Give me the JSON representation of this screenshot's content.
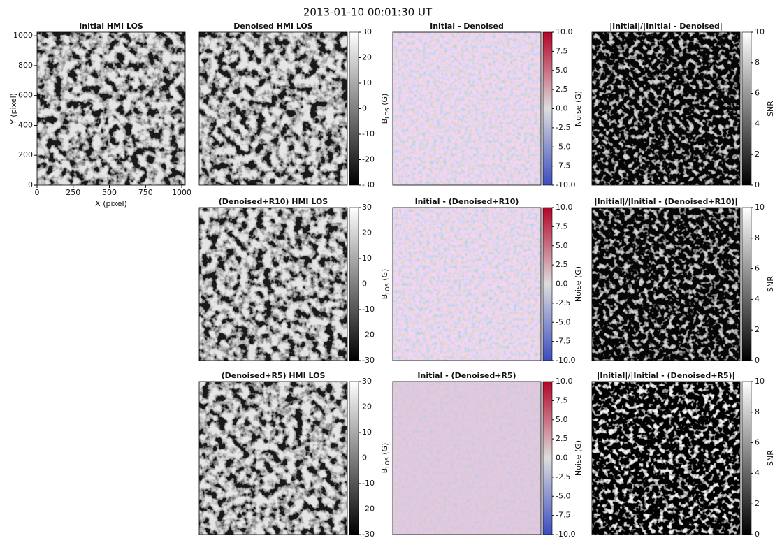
{
  "figure_title": "2013-01-10  00:01:30  UT",
  "chart_data": [
    {
      "type": "image",
      "title": "Initial HMI LOS",
      "colormap": "gray",
      "xlabel": "X (pixel)",
      "ylabel": "Y (pixel)",
      "xlim": [
        0,
        1024
      ],
      "ylim": [
        0,
        1024
      ],
      "xticks": [
        0,
        250,
        500,
        750,
        1000
      ],
      "yticks": [
        0,
        200,
        400,
        600,
        800,
        1000
      ]
    },
    {
      "type": "image",
      "title": "Denoised HMI LOS",
      "colormap": "gray",
      "colorbar": {
        "clim": [
          -30,
          30
        ],
        "ticks": [
          -30,
          -20,
          -10,
          0,
          10,
          20,
          30
        ],
        "label": {
          "main": "B",
          "sub": "LOS",
          "unit": " (G)"
        }
      }
    },
    {
      "type": "image",
      "title": "Initial - Denoised",
      "colormap": "bwr",
      "colorbar": {
        "clim": [
          -10,
          10
        ],
        "ticks": [
          {
            "value": -10,
            "label": "-10.0"
          },
          {
            "value": -7.5,
            "label": "-7.5"
          },
          {
            "value": -5,
            "label": "-5.0"
          },
          {
            "value": -2.5,
            "label": "-2.5"
          },
          {
            "value": 0,
            "label": "0.0"
          },
          {
            "value": 2.5,
            "label": "2.5"
          },
          {
            "value": 5,
            "label": "5.0"
          },
          {
            "value": 7.5,
            "label": "7.5"
          },
          {
            "value": 10,
            "label": "10.0"
          }
        ],
        "label": {
          "main": "Noise (G)"
        }
      }
    },
    {
      "type": "image",
      "title": "|Initial|/|Initial - Denoised|",
      "colormap": "snr",
      "colorbar": {
        "clim": [
          0,
          10
        ],
        "ticks": [
          0,
          2,
          4,
          6,
          8,
          10
        ],
        "label": {
          "main": "SNR"
        }
      }
    },
    {
      "type": "image",
      "title": "(Denoised+R10) HMI LOS",
      "colormap": "gray",
      "colorbar": {
        "clim": [
          -30,
          30
        ],
        "ticks": [
          -30,
          -20,
          -10,
          0,
          10,
          20,
          30
        ],
        "label": {
          "main": "B",
          "sub": "LOS",
          "unit": " (G)"
        }
      }
    },
    {
      "type": "image",
      "title": "Initial - (Denoised+R10)",
      "colormap": "bwr",
      "colorbar": {
        "clim": [
          -10,
          10
        ],
        "ticks": [
          {
            "value": -10,
            "label": "-10.0"
          },
          {
            "value": -7.5,
            "label": "-7.5"
          },
          {
            "value": -5,
            "label": "-5.0"
          },
          {
            "value": -2.5,
            "label": "-2.5"
          },
          {
            "value": 0,
            "label": "0.0"
          },
          {
            "value": 2.5,
            "label": "2.5"
          },
          {
            "value": 5,
            "label": "5.0"
          },
          {
            "value": 7.5,
            "label": "7.5"
          },
          {
            "value": 10,
            "label": "10.0"
          }
        ],
        "label": {
          "main": "Noise (G)"
        }
      }
    },
    {
      "type": "image",
      "title": "|Initial|/|Initial - (Denoised+R10)|",
      "colormap": "snr",
      "colorbar": {
        "clim": [
          0,
          10
        ],
        "ticks": [
          0,
          2,
          4,
          6,
          8,
          10
        ],
        "label": {
          "main": "SNR"
        }
      }
    },
    {
      "type": "image",
      "title": "(Denoised+R5) HMI LOS",
      "colormap": "gray",
      "colorbar": {
        "clim": [
          -30,
          30
        ],
        "ticks": [
          -30,
          -20,
          -10,
          0,
          10,
          20,
          30
        ],
        "label": {
          "main": "B",
          "sub": "LOS",
          "unit": " (G)"
        }
      }
    },
    {
      "type": "image",
      "title": "Initial - (Denoised+R5)",
      "colormap": "bwr",
      "colorbar": {
        "clim": [
          -10,
          10
        ],
        "ticks": [
          {
            "value": -10,
            "label": "-10.0"
          },
          {
            "value": -7.5,
            "label": "-7.5"
          },
          {
            "value": -5,
            "label": "-5.0"
          },
          {
            "value": -2.5,
            "label": "-2.5"
          },
          {
            "value": 0,
            "label": "0.0"
          },
          {
            "value": 2.5,
            "label": "2.5"
          },
          {
            "value": 5,
            "label": "5.0"
          },
          {
            "value": 7.5,
            "label": "7.5"
          },
          {
            "value": 10,
            "label": "10.0"
          }
        ],
        "label": {
          "main": "Noise (G)"
        }
      }
    },
    {
      "type": "image",
      "title": "|Initial|/|Initial - (Denoised+R5)|",
      "colormap": "snr",
      "colorbar": {
        "clim": [
          0,
          10
        ],
        "ticks": [
          0,
          2,
          4,
          6,
          8,
          10
        ],
        "label": {
          "main": "SNR"
        }
      }
    }
  ]
}
